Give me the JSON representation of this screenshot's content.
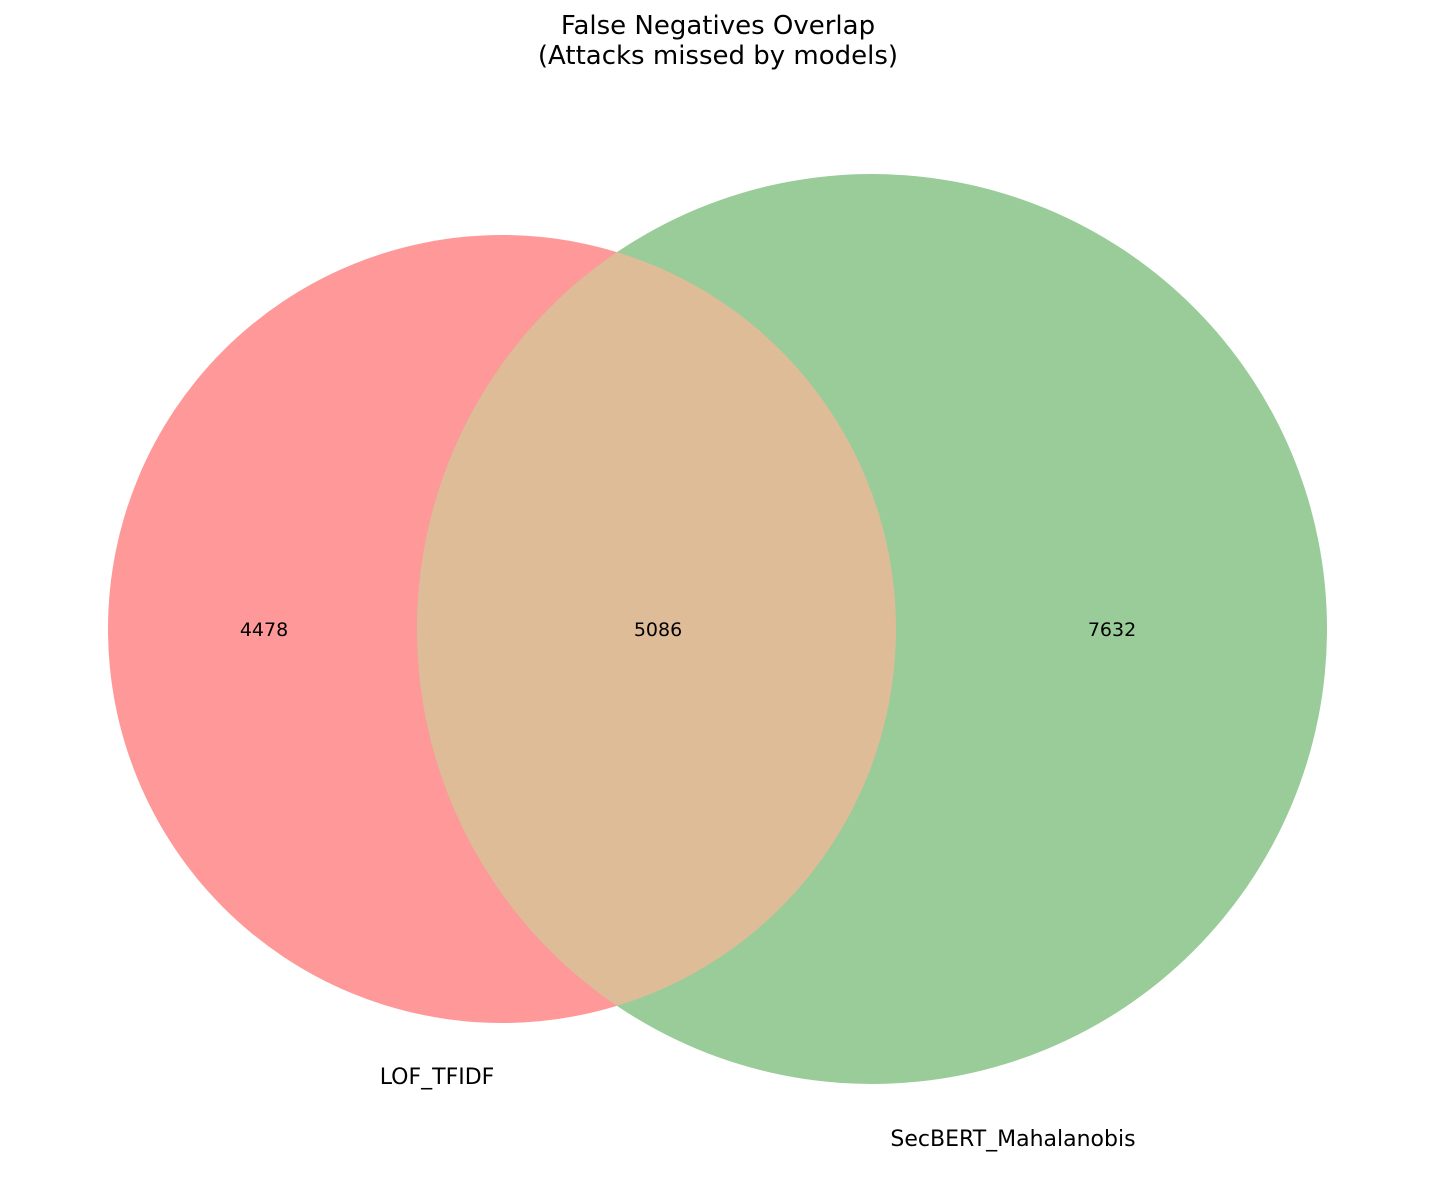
{
  "title": "False Negatives Overlap",
  "subtitle": "(Attacks missed by models)",
  "sets": [
    {
      "name": "LOF_TFIDF",
      "color": "#ff9999"
    },
    {
      "name": "SecBERT_Mahalanobis",
      "color": "#99cc99"
    }
  ],
  "intersection_color": "#dfbc98",
  "counts": {
    "only_a": "4478",
    "both": "5086",
    "only_b": "7632"
  }
}
